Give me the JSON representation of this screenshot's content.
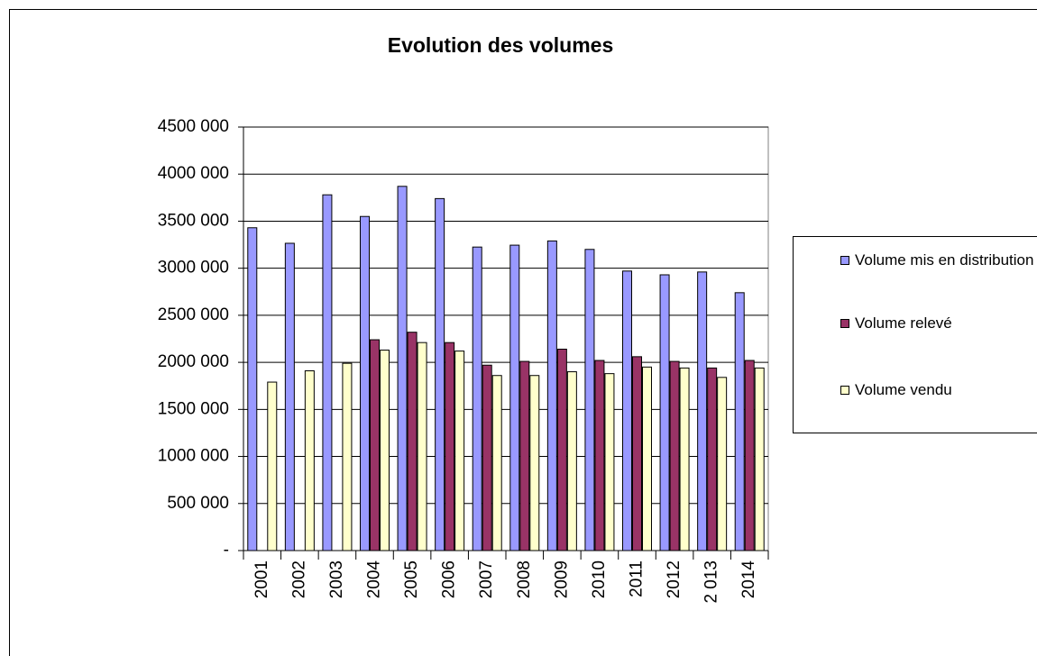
{
  "chart_data": {
    "type": "bar",
    "title": "Evolution des volumes",
    "categories": [
      "2001",
      "2002",
      "2003",
      "2004",
      "2005",
      "2006",
      "2007",
      "2008",
      "2009",
      "2010",
      "2011",
      "2012",
      "2 013",
      "2014"
    ],
    "series": [
      {
        "name": "Volume mis en distribution",
        "color": "#9999ff",
        "values": [
          3430000,
          3265000,
          3780000,
          3550000,
          3870000,
          3740000,
          3225000,
          3245000,
          3290000,
          3200000,
          2970000,
          2930000,
          2960000,
          2740000
        ]
      },
      {
        "name": "Volume relevé",
        "color": "#993366",
        "values": [
          null,
          null,
          null,
          2240000,
          2320000,
          2210000,
          1970000,
          2010000,
          2140000,
          2020000,
          2060000,
          2010000,
          1940000,
          2020000
        ]
      },
      {
        "name": "Volume vendu",
        "color": "#ffffcc",
        "values": [
          1790000,
          1910000,
          1990000,
          2130000,
          2210000,
          2120000,
          1860000,
          1860000,
          1900000,
          1880000,
          1950000,
          1940000,
          1840000,
          1940000
        ]
      }
    ],
    "ylim": [
      0,
      4500000
    ],
    "yticks": [
      {
        "value": 0,
        "label": "-"
      },
      {
        "value": 500000,
        "label": "500 000"
      },
      {
        "value": 1000000,
        "label": "1000 000"
      },
      {
        "value": 1500000,
        "label": "1500 000"
      },
      {
        "value": 2000000,
        "label": "2000 000"
      },
      {
        "value": 2500000,
        "label": "2500 000"
      },
      {
        "value": 3000000,
        "label": "3000 000"
      },
      {
        "value": 3500000,
        "label": "3500 000"
      },
      {
        "value": 4000000,
        "label": "4000 000"
      },
      {
        "value": 4500000,
        "label": "4500 000"
      }
    ],
    "grid": true,
    "legend": "right"
  }
}
